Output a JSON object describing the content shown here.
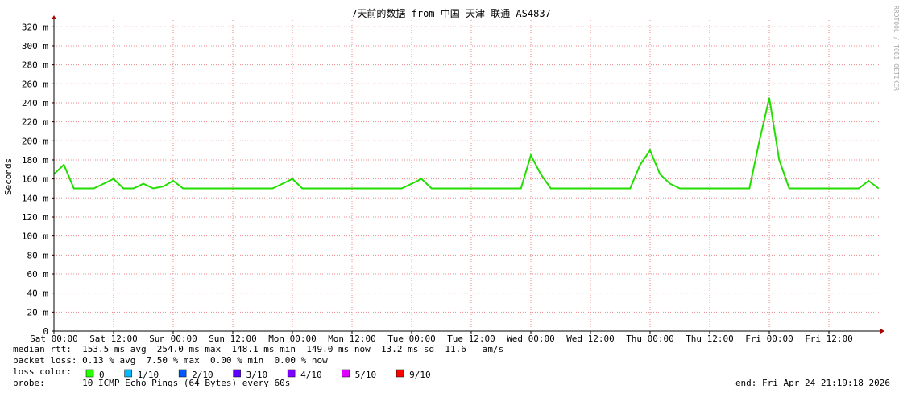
{
  "chart_data": {
    "type": "line",
    "title": "7天前的数据 from  中国 天津 联通 AS4837",
    "y_label": "Seconds",
    "watermark": "RRDTOOL / TOBI OETIKER",
    "categories": [
      "Sat 00:00",
      null,
      null,
      null,
      null,
      null,
      "Sat 12:00",
      null,
      null,
      null,
      null,
      null,
      "Sun 00:00",
      null,
      null,
      null,
      null,
      null,
      "Sun 12:00",
      null,
      null,
      null,
      null,
      null,
      "Mon 00:00",
      null,
      null,
      null,
      null,
      null,
      "Mon 12:00",
      null,
      null,
      null,
      null,
      null,
      "Tue 00:00",
      null,
      null,
      null,
      null,
      null,
      "Tue 12:00",
      null,
      null,
      null,
      null,
      null,
      "Wed 00:00",
      null,
      null,
      null,
      null,
      null,
      "Wed 12:00",
      null,
      null,
      null,
      null,
      null,
      "Thu 00:00",
      null,
      null,
      null,
      null,
      null,
      "Thu 12:00",
      null,
      null,
      null,
      null,
      null,
      "Fri 00:00",
      null,
      null,
      null,
      null,
      null,
      "Fri 12:00",
      null,
      null,
      null,
      null,
      null
    ],
    "series": [
      {
        "name": "median rtt",
        "color": "#22dd00",
        "values": [
          0.165,
          0.175,
          0.15,
          0.15,
          0.15,
          0.155,
          0.16,
          0.15,
          0.15,
          0.155,
          0.15,
          0.152,
          0.158,
          0.15,
          0.15,
          0.15,
          0.15,
          0.15,
          0.15,
          0.15,
          0.15,
          0.15,
          0.15,
          0.155,
          0.16,
          0.15,
          0.15,
          0.15,
          0.15,
          0.15,
          0.15,
          0.15,
          0.15,
          0.15,
          0.15,
          0.15,
          0.155,
          0.16,
          0.15,
          0.15,
          0.15,
          0.15,
          0.15,
          0.15,
          0.15,
          0.15,
          0.15,
          0.15,
          0.185,
          0.165,
          0.15,
          0.15,
          0.15,
          0.15,
          0.15,
          0.15,
          0.15,
          0.15,
          0.15,
          0.175,
          0.19,
          0.165,
          0.155,
          0.15,
          0.15,
          0.15,
          0.15,
          0.15,
          0.15,
          0.15,
          0.15,
          0.2,
          0.245,
          0.18,
          0.15,
          0.15,
          0.15,
          0.15,
          0.15,
          0.15,
          0.15,
          0.15,
          0.158,
          0.15
        ]
      }
    ],
    "ylim": [
      0,
      0.327
    ],
    "yticks": [
      0,
      {
        "value": 0.02,
        "label": "20 m"
      },
      {
        "value": 0.04,
        "label": "40 m"
      },
      {
        "value": 0.06,
        "label": "60 m"
      },
      {
        "value": 0.08,
        "label": "80 m"
      },
      {
        "value": 0.1,
        "label": "100 m"
      },
      {
        "value": 0.12,
        "label": "120 m"
      },
      {
        "value": 0.14,
        "label": "140 m"
      },
      {
        "value": 0.16,
        "label": "160 m"
      },
      {
        "value": 0.18,
        "label": "180 m"
      },
      {
        "value": 0.2,
        "label": "200 m"
      },
      {
        "value": 0.22,
        "label": "220 m"
      },
      {
        "value": 0.24,
        "label": "240 m"
      },
      {
        "value": 0.26,
        "label": "260 m"
      },
      {
        "value": 0.28,
        "label": "280 m"
      },
      {
        "value": 0.3,
        "label": "300 m"
      },
      {
        "value": 0.32,
        "label": "320 m"
      }
    ],
    "grid": true,
    "stats": [
      "median rtt:  153.5 ms avg  254.0 ms max  148.1 ms min  149.0 ms now  13.2 ms sd  11.6   am/s",
      "packet loss: 0.13 % avg  7.50 % max  0.00 % min  0.00 % now"
    ],
    "loss_title": "loss color:",
    "loss_colors": [
      {
        "label": "0",
        "color": "#26ff00"
      },
      {
        "label": "1/10",
        "color": "#00b8ff"
      },
      {
        "label": "2/10",
        "color": "#0059ff"
      },
      {
        "label": "3/10",
        "color": "#5e00ff"
      },
      {
        "label": "4/10",
        "color": "#7e00ff"
      },
      {
        "label": "5/10",
        "color": "#dd00ff"
      },
      {
        "label": "9/10",
        "color": "#ff0000"
      }
    ],
    "probe": "probe:       10 ICMP Echo Pings (64 Bytes) every 60s",
    "end": "end: Fri Apr 24 21:19:18 2026"
  }
}
